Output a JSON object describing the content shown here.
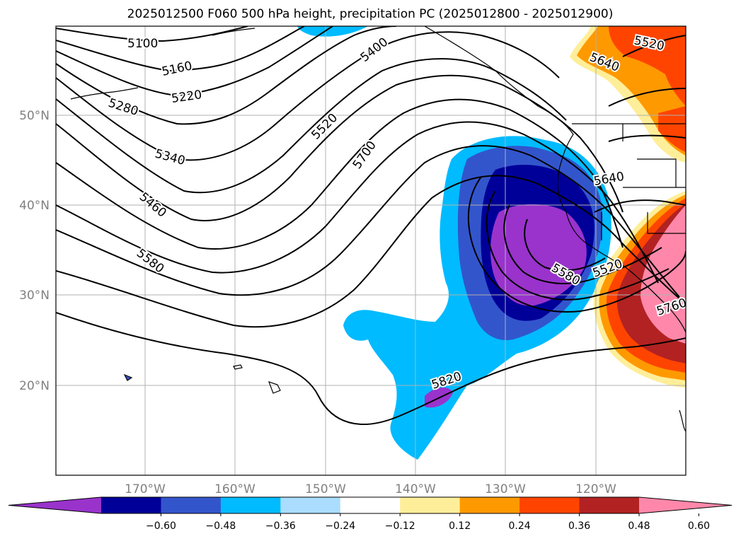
{
  "title": "2025012500 F060 500 hPa height, precipitation PC (2025012800 - 2025012900)",
  "map": {
    "lon_range": [
      -180,
      -110
    ],
    "lat_range": [
      10,
      60
    ],
    "lat_labels": [
      "50°N",
      "40°N",
      "30°N",
      "20°N"
    ],
    "lon_labels": [
      "170°W",
      "160°W",
      "150°W",
      "140°W",
      "130°W",
      "120°W"
    ],
    "contour_labels": [
      "5100",
      "5160",
      "5220",
      "5280",
      "5340",
      "5460",
      "5580",
      "5400",
      "5520",
      "5700",
      "5640",
      "5520",
      "5640",
      "5580",
      "5520",
      "5760",
      "5820"
    ]
  },
  "colorbar": {
    "ticks": [
      "−0.60",
      "−0.48",
      "−0.36",
      "−0.24",
      "−0.12",
      "0.12",
      "0.24",
      "0.36",
      "0.48",
      "0.60"
    ],
    "colors": [
      "#9933cc",
      "#000099",
      "#3355cc",
      "#00bbff",
      "#aaddff",
      "#ffffff",
      "#ffee99",
      "#ff9900",
      "#ff4400",
      "#b22222",
      "#ff88aa"
    ]
  }
}
